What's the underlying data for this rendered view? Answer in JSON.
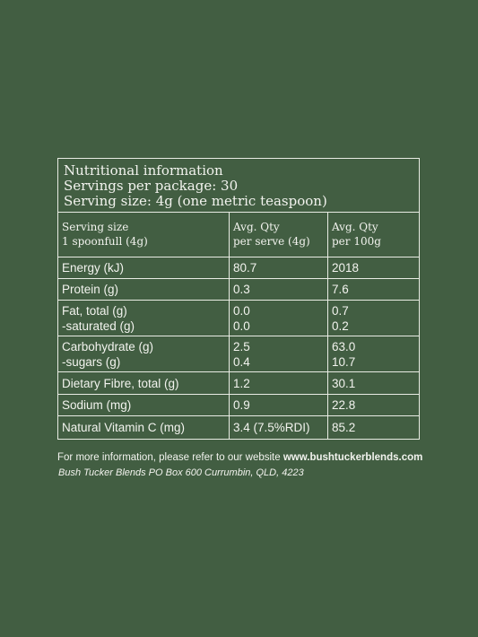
{
  "panel": {
    "title": "Nutritional information",
    "servings_per_package": "Servings per package: 30",
    "serving_size": "Serving size: 4g (one metric teaspoon)"
  },
  "table": {
    "headers": [
      [
        "Serving size",
        "1 spoonfull (4g)"
      ],
      [
        "Avg. Qty",
        "per serve (4g)"
      ],
      [
        "Avg. Qty",
        "per 100g"
      ]
    ],
    "rows": [
      {
        "nutrient": [
          "Energy (kJ)"
        ],
        "per_serve": [
          "80.7"
        ],
        "per_100g": [
          "2018"
        ]
      },
      {
        "nutrient": [
          "Protein (g)"
        ],
        "per_serve": [
          "0.3"
        ],
        "per_100g": [
          "7.6"
        ]
      },
      {
        "nutrient": [
          "Fat, total (g)",
          "-saturated (g)"
        ],
        "per_serve": [
          "0.0",
          "0.0"
        ],
        "per_100g": [
          "0.7",
          "0.2"
        ]
      },
      {
        "nutrient": [
          "Carbohydrate (g)",
          "-sugars (g)"
        ],
        "per_serve": [
          "2.5",
          "0.4"
        ],
        "per_100g": [
          "63.0",
          "10.7"
        ]
      },
      {
        "nutrient": [
          "Dietary Fibre, total (g)"
        ],
        "per_serve": [
          "1.2"
        ],
        "per_100g": [
          "30.1"
        ]
      },
      {
        "nutrient": [
          "Sodium (mg)"
        ],
        "per_serve": [
          "0.9"
        ],
        "per_100g": [
          "22.8"
        ]
      },
      {
        "nutrient": [
          "Natural Vitamin C (mg)"
        ],
        "per_serve": [
          "3.4 (7.5%RDI)"
        ],
        "per_100g": [
          "85.2"
        ]
      }
    ]
  },
  "footer": {
    "info_prefix": "For more information, please refer to our website ",
    "website": "www.bushtuckerblends.com",
    "address": "Bush Tucker Blends  PO Box 600 Currumbin, QLD, 4223"
  },
  "colors": {
    "background": "#425e42",
    "text": "#f2f3ee",
    "rule": "#e9ece4"
  }
}
